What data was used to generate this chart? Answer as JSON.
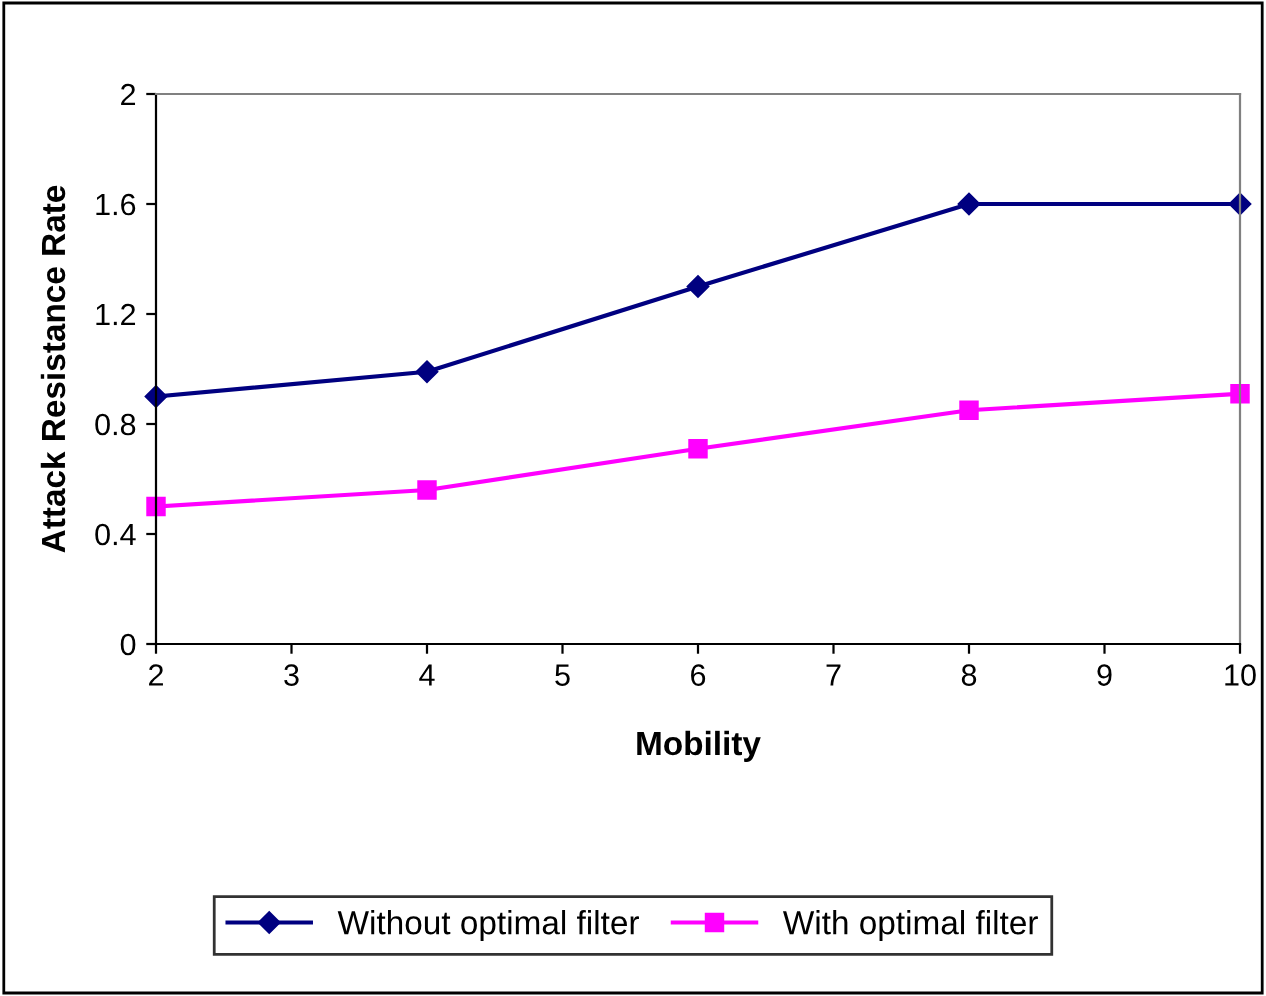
{
  "chart_data": {
    "type": "line",
    "xlabel": "Mobility",
    "ylabel": "Attack Resistance Rate",
    "x": [
      2,
      4,
      6,
      8,
      10
    ],
    "series": [
      {
        "name": "Without optimal filter",
        "color": "#000080",
        "marker": "diamond",
        "values": [
          0.9,
          0.99,
          1.3,
          1.6,
          1.6
        ]
      },
      {
        "name": "With optimal filter",
        "color": "#ff00ff",
        "marker": "square",
        "values": [
          0.5,
          0.56,
          0.71,
          0.85,
          0.91
        ]
      }
    ],
    "xlim": [
      2,
      10
    ],
    "xticks": [
      2,
      3,
      4,
      5,
      6,
      7,
      8,
      9,
      10
    ],
    "ylim": [
      0,
      2
    ],
    "yticks": [
      0,
      0.4,
      0.8,
      1.2,
      1.6,
      2
    ],
    "grid": false,
    "legend": "bottom",
    "line_style": "solid"
  }
}
